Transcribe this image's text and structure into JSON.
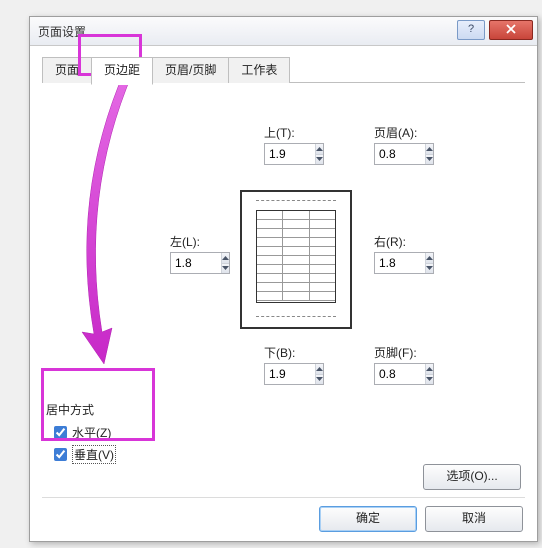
{
  "dialog": {
    "title": "页面设置",
    "help_symbol": "?",
    "close_label": "×"
  },
  "tabs": {
    "items": [
      {
        "label": "页面"
      },
      {
        "label": "页边距",
        "active": true
      },
      {
        "label": "页眉/页脚"
      },
      {
        "label": "工作表"
      }
    ]
  },
  "margins": {
    "top": {
      "label": "上(T):",
      "value": "1.9"
    },
    "header": {
      "label": "页眉(A):",
      "value": "0.8"
    },
    "left": {
      "label": "左(L):",
      "value": "1.8"
    },
    "right": {
      "label": "右(R):",
      "value": "1.8"
    },
    "bottom": {
      "label": "下(B):",
      "value": "1.9"
    },
    "footer": {
      "label": "页脚(F):",
      "value": "0.8"
    }
  },
  "center_section": {
    "title": "居中方式",
    "horizontal": {
      "label": "水平(Z)",
      "checked": true
    },
    "vertical": {
      "label": "垂直(V)",
      "checked": true
    }
  },
  "buttons": {
    "options": "选项(O)...",
    "ok": "确定",
    "cancel": "取消"
  },
  "colors": {
    "highlight": "#d835d8",
    "arrow": "#d835d8",
    "dialog_border": "#9e9e9e",
    "close_bg": "#c8453a"
  },
  "preview": {
    "rows": 10,
    "cols": 3
  }
}
